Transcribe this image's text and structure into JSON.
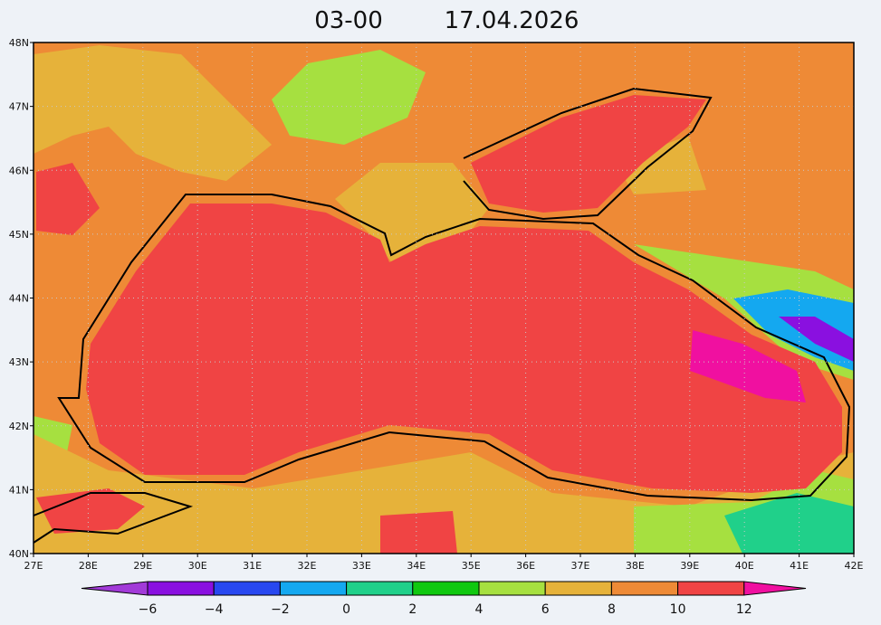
{
  "header": {
    "time": "03-00",
    "date": "17.04.2026"
  },
  "map": {
    "lat_labels": [
      "48N",
      "47N",
      "46N",
      "45N",
      "44N",
      "43N",
      "42N",
      "41N",
      "40N"
    ],
    "lon_labels": [
      "27E",
      "28E",
      "29E",
      "30E",
      "31E",
      "32E",
      "33E",
      "34E",
      "35E",
      "36E",
      "37E",
      "38E",
      "39E",
      "40E",
      "41E",
      "42E"
    ]
  },
  "colorbar": {
    "labels": [
      "−6",
      "−4",
      "−2",
      "0",
      "2",
      "4",
      "6",
      "8",
      "10",
      "12"
    ],
    "colors": [
      "#a23ad8",
      "#8a10e0",
      "#2848f0",
      "#14a8f0",
      "#20d08a",
      "#10c810",
      "#a6e040",
      "#e6b23a",
      "#ee8a36",
      "#f04444",
      "#f010a0"
    ]
  }
}
